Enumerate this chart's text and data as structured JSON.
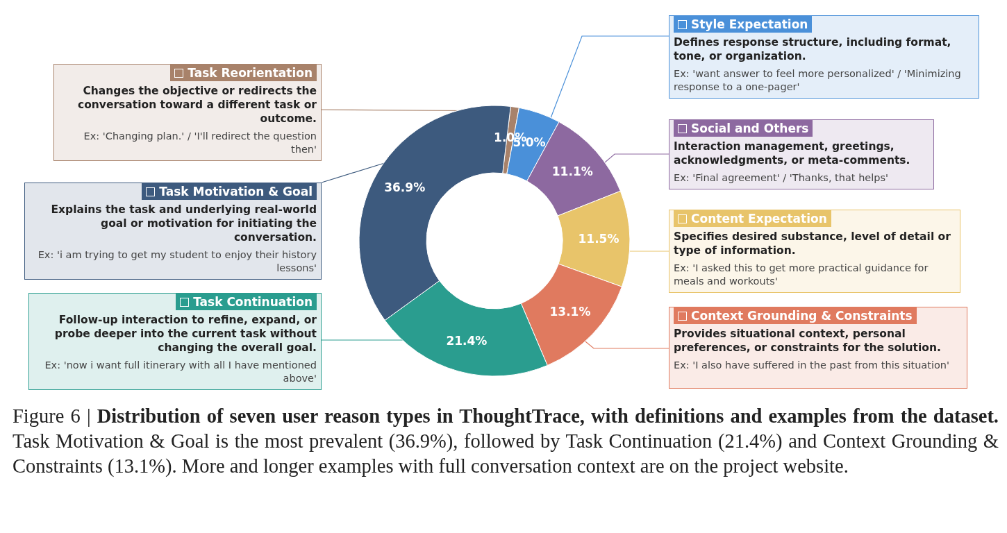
{
  "chart_data": {
    "type": "donut",
    "title": "Distribution of seven user reason types in ThoughtTrace, with definitions and examples from the dataset.",
    "subtitle": "Task Motivation & Goal is the most prevalent (36.9%), followed by Task Continuation (21.4%) and Context Grounding & Constraints (13.1%). More and longer examples with full conversation context are on the project website.",
    "categories": [
      "Task Reorientation",
      "Style Expectation",
      "Social and Others",
      "Content Expectation",
      "Context Grounding & Constraints",
      "Task Continuation",
      "Task Motivation & Goal"
    ],
    "values": [
      1.0,
      5.0,
      11.1,
      11.5,
      13.1,
      21.4,
      36.9
    ],
    "colors": [
      "#a8826a",
      "#4a90d9",
      "#8d69a0",
      "#e8c46a",
      "#e07a5f",
      "#2a9d8f",
      "#3d5a7e"
    ],
    "legend": "right",
    "value_labels": [
      "1.0%",
      "5.0%",
      "11.1%",
      "11.5%",
      "13.1%",
      "21.4%",
      "36.9%"
    ],
    "annotations": [
      "Changes the objective or redirects the conversation toward a different task or outcome.",
      "Ex: 'Changing plan.' / 'I'll redirect the question then'",
      "Defines response structure, including format, tone, or organization.",
      "Ex: 'want answer to feel more personalized' / 'Minimizing response to a one-pager'",
      "Interaction management, greetings, acknowledgments, or meta-comments.",
      "Ex: 'Final agreement' / 'Thanks, that helps'",
      "Specifies desired substance, level of detail or type of information.",
      "Ex: 'I asked this to get more practical guidance for meals and workouts'",
      "Provides situational context, personal preferences, or constraints for the solution.",
      "Ex: 'I also have suffered in the past from this situation'",
      "Follow-up interaction to refine, expand, or probe deeper into the current task without changing the overall goal.",
      "Ex: 'now i want full itinerary with all I have  mentioned above'",
      "Explains the task and underlying real-world goal or motivation for initiating the conversation.",
      "Ex: 'i am trying to get my student to enjoy their history lessons'",
      "Figure 6 |"
    ]
  }
}
